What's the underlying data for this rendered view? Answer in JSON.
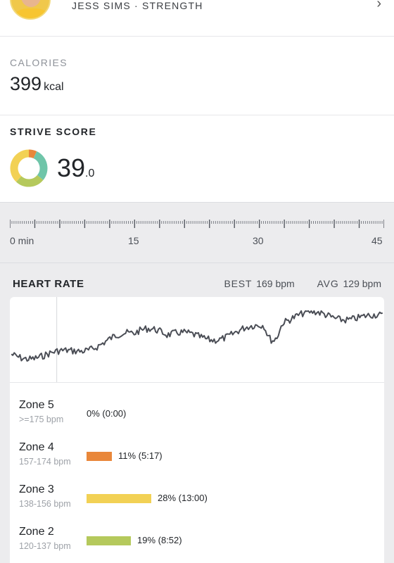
{
  "instructor": {
    "text": "JESS SIMS  ·  STRENGTH",
    "chevron": "›"
  },
  "calories": {
    "label": "CALORIES",
    "value": "399",
    "unit": "kcal"
  },
  "strive": {
    "label": "STRIVE SCORE",
    "score_main": "39",
    "score_decimal": ".0",
    "donut_colors": [
      "#e9873a",
      "#6fc5a9",
      "#b5c95c",
      "#f2d155"
    ]
  },
  "timeline": {
    "labels": [
      "0 min",
      "15",
      "30",
      "45"
    ]
  },
  "heart_rate": {
    "title": "HEART RATE",
    "best_label": "BEST",
    "best_value": "169 bpm",
    "avg_label": "AVG",
    "avg_value": "129 bpm",
    "line_color": "#4a4d55"
  },
  "zones": [
    {
      "name": "Zone 5",
      "range": ">=175 bpm",
      "value": "0% (0:00)",
      "percent": 0,
      "color": "#e04e39"
    },
    {
      "name": "Zone 4",
      "range": "157-174 bpm",
      "value": "11% (5:17)",
      "percent": 11,
      "color": "#e9873a"
    },
    {
      "name": "Zone 3",
      "range": "138-156 bpm",
      "value": "28% (13:00)",
      "percent": 28,
      "color": "#f2d155"
    },
    {
      "name": "Zone 2",
      "range": "120-137 bpm",
      "value": "19% (8:52)",
      "percent": 19,
      "color": "#b5c95c"
    }
  ]
}
